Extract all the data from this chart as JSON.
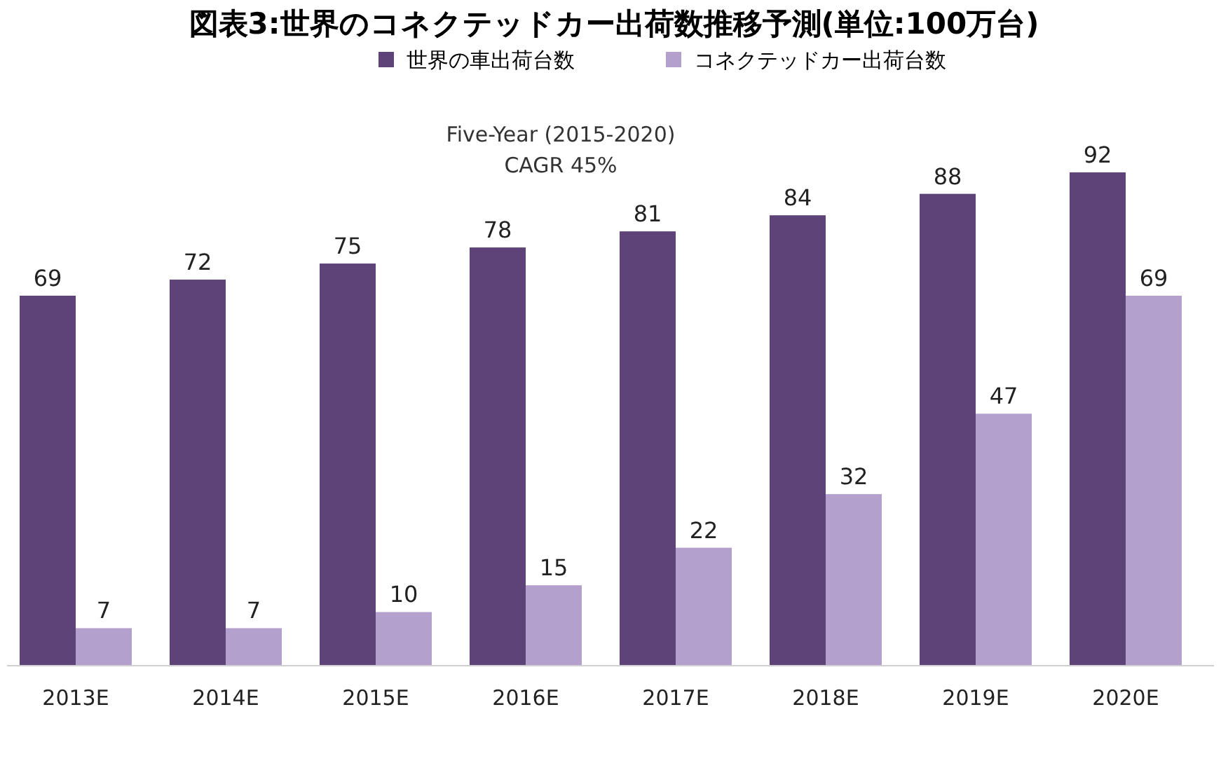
{
  "chart_data": {
    "type": "bar",
    "title": "図表3:世界のコネクテッドカー出荷数推移予測(単位:100万台)",
    "categories": [
      "2013E",
      "2014E",
      "2015E",
      "2016E",
      "2017E",
      "2018E",
      "2019E",
      "2020E"
    ],
    "series": [
      {
        "name": "世界の車出荷台数",
        "color": "#5e4379",
        "values": [
          69,
          72,
          75,
          78,
          81,
          84,
          88,
          92
        ]
      },
      {
        "name": "コネクテッドカー出荷台数",
        "color": "#b4a0cc",
        "values": [
          7,
          7,
          10,
          15,
          22,
          32,
          47,
          69
        ]
      }
    ],
    "data_labels": true,
    "legend": "top",
    "annotations": [
      "Five-Year (2015-2020)",
      "CAGR 45%"
    ]
  }
}
